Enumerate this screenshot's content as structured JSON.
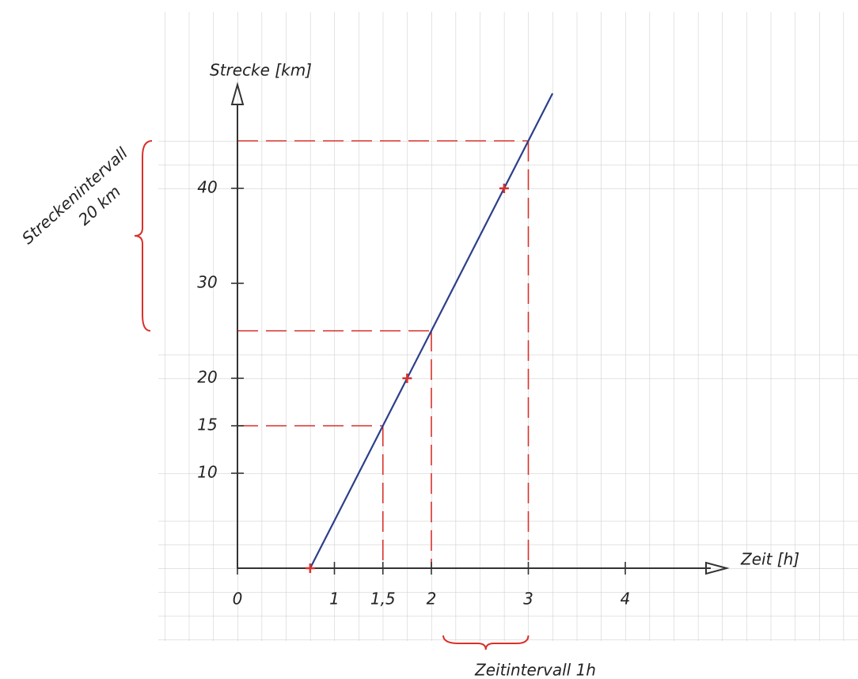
{
  "chart_data": {
    "type": "line",
    "x_label": "Zeit [h]",
    "y_label": "Strecke [km]",
    "xlim": [
      0,
      4.8
    ],
    "ylim": [
      0,
      50.5
    ],
    "xticks": [
      0,
      1,
      {
        "value": 1.5,
        "label": "1,5",
        "color": "#d9302a"
      },
      2,
      3,
      4
    ],
    "yticks": [
      10,
      {
        "value": 15,
        "color": "#d9302a"
      },
      20,
      30,
      40
    ],
    "series": [
      {
        "color": "#2b3f8a",
        "x": [
          0.75,
          3.25
        ],
        "values": [
          0,
          50
        ]
      },
      {
        "color": "#d9302a",
        "marker": "cross",
        "x": [
          0.75,
          1.75,
          2.75
        ],
        "values": [
          0,
          20,
          40
        ]
      }
    ],
    "guides": [
      {
        "x": 1.5,
        "y": 15
      },
      {
        "x": 2,
        "y": 25
      },
      {
        "x": 3,
        "y": 45
      }
    ],
    "guide_color": "#d9302a",
    "intervals": [
      {
        "axis": "y",
        "from": 25,
        "to": 45,
        "label": [
          "Streckenintervall",
          "20 km"
        ]
      },
      {
        "axis": "x",
        "from": 2,
        "to": 3,
        "label": "Zeitintervall 1h"
      }
    ]
  }
}
